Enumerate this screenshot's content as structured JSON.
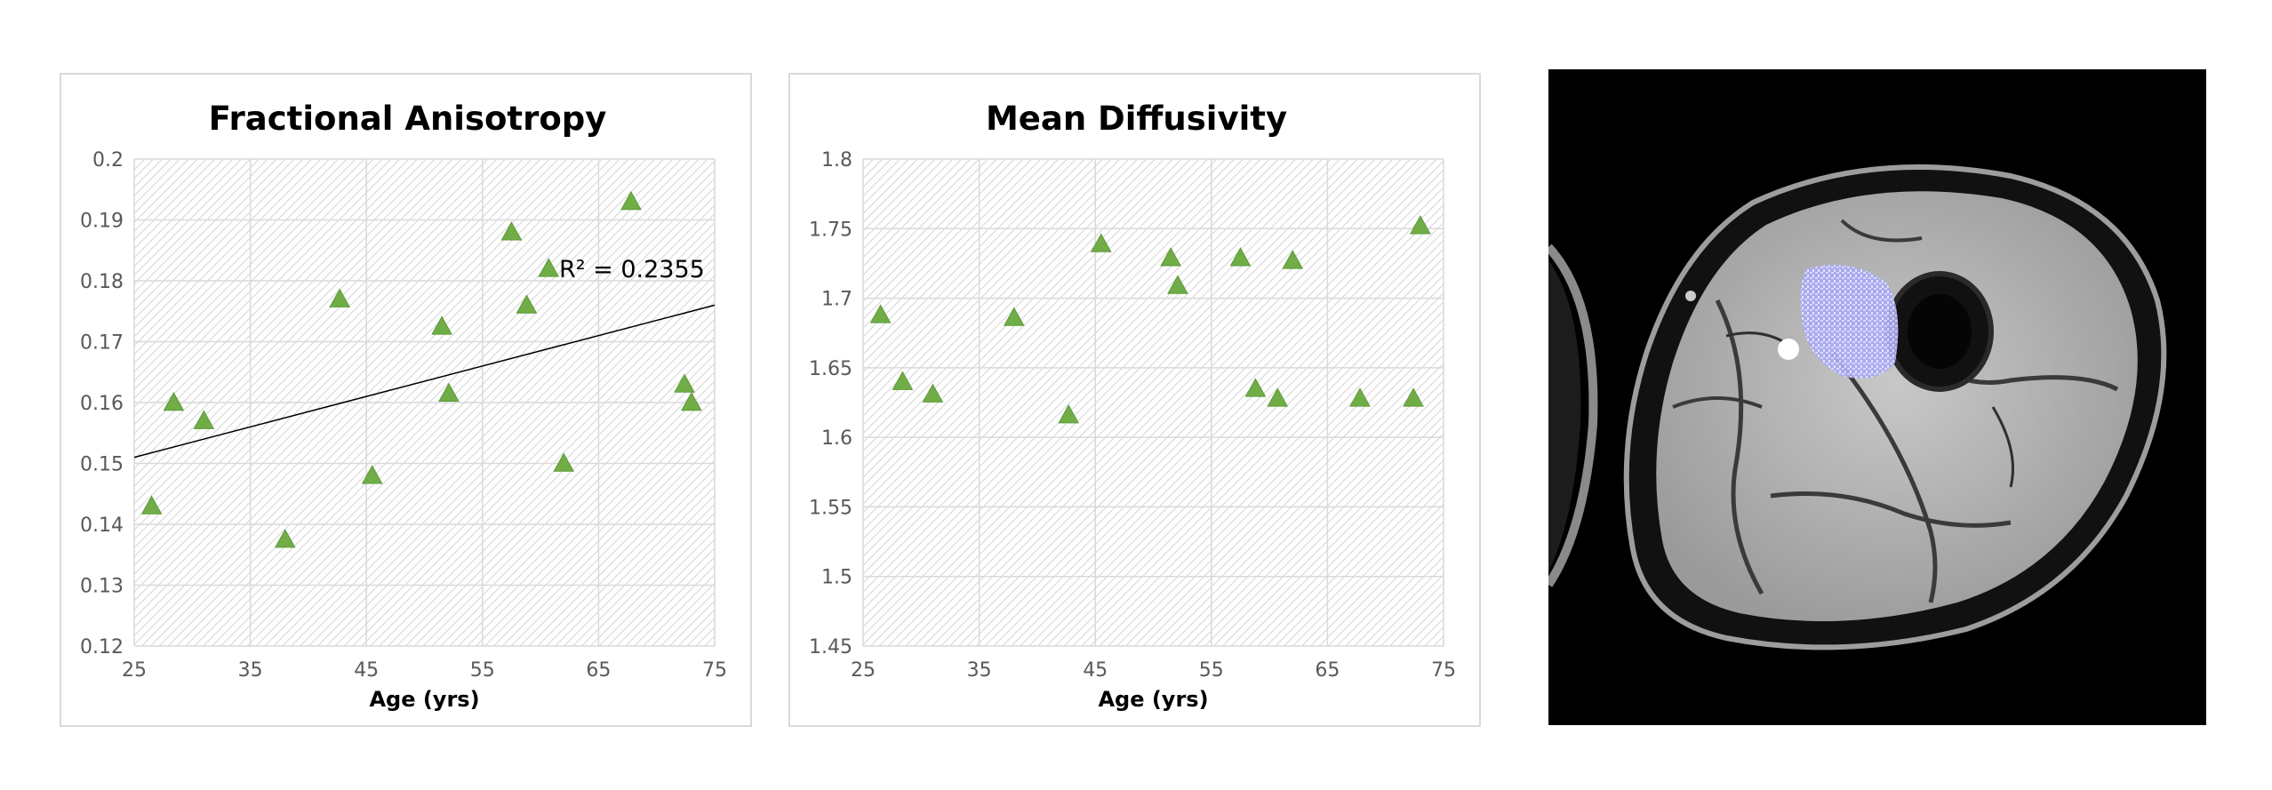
{
  "chart_data": [
    {
      "type": "scatter",
      "title": "Fractional Anisotropy",
      "xlabel": "Age (yrs)",
      "ylabel": "",
      "xlim": [
        25,
        75
      ],
      "ylim": [
        0.12,
        0.2
      ],
      "xticks": [
        "25",
        "35",
        "45",
        "55",
        "65",
        "75"
      ],
      "yticks": [
        "0.12",
        "0.13",
        "0.14",
        "0.15",
        "0.16",
        "0.17",
        "0.18",
        "0.19",
        "0.2"
      ],
      "grid": true,
      "legend": "none",
      "marker": "triangle",
      "marker_color": "#70AD47",
      "x": [
        26.5,
        28.4,
        31.0,
        38.0,
        42.7,
        45.5,
        51.5,
        52.1,
        57.5,
        58.8,
        60.7,
        62.0,
        67.8,
        72.4,
        73.0
      ],
      "y": [
        0.143,
        0.16,
        0.157,
        0.1375,
        0.177,
        0.148,
        0.1725,
        0.1615,
        0.188,
        0.176,
        0.182,
        0.15,
        0.193,
        0.163,
        0.16
      ],
      "trendline": {
        "type": "linear",
        "x": [
          25,
          75
        ],
        "y": [
          0.151,
          0.176
        ],
        "label": "R² = 0.2355"
      }
    },
    {
      "type": "scatter",
      "title": "Mean Diffusivity",
      "xlabel": "Age (yrs)",
      "ylabel": "",
      "xlim": [
        25,
        75
      ],
      "ylim": [
        1.45,
        1.8
      ],
      "xticks": [
        "25",
        "35",
        "45",
        "55",
        "65",
        "75"
      ],
      "yticks": [
        "1.45",
        "1.5",
        "1.55",
        "1.6",
        "1.65",
        "1.7",
        "1.75",
        "1.8"
      ],
      "grid": true,
      "legend": "none",
      "marker": "triangle",
      "marker_color": "#70AD47",
      "x": [
        26.5,
        28.4,
        31.0,
        38.0,
        42.7,
        45.5,
        51.5,
        52.1,
        57.5,
        58.8,
        60.7,
        62.0,
        67.8,
        72.4,
        73.0
      ],
      "y": [
        1.688,
        1.64,
        1.631,
        1.686,
        1.616,
        1.739,
        1.729,
        1.709,
        1.729,
        1.635,
        1.628,
        1.727,
        1.628,
        1.628,
        1.752
      ]
    }
  ],
  "image": {
    "icon": "mri-thigh-cross-section-icon",
    "highlight_color": "#A9A9F5"
  }
}
